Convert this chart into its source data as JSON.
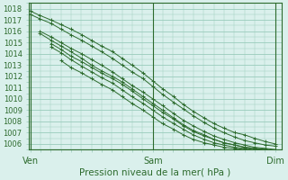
{
  "xlabel": "Pression niveau de la mer( hPa )",
  "xtick_labels": [
    "Ven",
    "Sam",
    "Dim"
  ],
  "xtick_positions": [
    0.0,
    1.0,
    2.0
  ],
  "ylim": [
    1005.5,
    1018.5
  ],
  "yticks": [
    1006,
    1007,
    1008,
    1009,
    1010,
    1011,
    1012,
    1013,
    1014,
    1015,
    1016,
    1017,
    1018
  ],
  "xlim": [
    -0.01,
    2.05
  ],
  "bg_color": "#daf0ec",
  "grid_color": "#99ccbb",
  "line_color": "#2d6b2d",
  "lines": [
    {
      "x": [
        0.0,
        0.08,
        0.17,
        0.25,
        0.33,
        0.42,
        0.5,
        0.58,
        0.67,
        0.75,
        0.83,
        0.92,
        1.0,
        1.08,
        1.17,
        1.25,
        1.33,
        1.42,
        1.5,
        1.58,
        1.67,
        1.75,
        1.83,
        1.92,
        2.0
      ],
      "y": [
        1017.8,
        1017.4,
        1017.0,
        1016.6,
        1016.2,
        1015.7,
        1015.2,
        1014.7,
        1014.2,
        1013.6,
        1013.0,
        1012.3,
        1011.6,
        1010.9,
        1010.2,
        1009.5,
        1008.9,
        1008.3,
        1007.8,
        1007.4,
        1007.0,
        1006.8,
        1006.5,
        1006.2,
        1006.0
      ]
    },
    {
      "x": [
        0.0,
        0.08,
        0.17,
        0.25,
        0.33,
        0.42,
        0.5,
        0.58,
        0.67,
        0.75,
        0.83,
        0.92,
        1.0,
        1.08,
        1.17,
        1.25,
        1.33,
        1.42,
        1.5,
        1.58,
        1.67,
        1.75,
        1.83,
        1.92,
        2.0
      ],
      "y": [
        1017.5,
        1017.1,
        1016.7,
        1016.2,
        1015.7,
        1015.2,
        1014.7,
        1014.2,
        1013.6,
        1013.0,
        1012.4,
        1011.8,
        1011.1,
        1010.4,
        1009.7,
        1009.1,
        1008.5,
        1007.9,
        1007.4,
        1007.0,
        1006.6,
        1006.3,
        1006.1,
        1005.9,
        1005.8
      ]
    },
    {
      "x": [
        0.08,
        0.17,
        0.25,
        0.33,
        0.42,
        0.5,
        0.58,
        0.67,
        0.75,
        0.83,
        0.92,
        1.0,
        1.08,
        1.17,
        1.25,
        1.33,
        1.42,
        1.5,
        1.58,
        1.67,
        1.75,
        1.83,
        1.92,
        2.0
      ],
      "y": [
        1016.0,
        1015.5,
        1015.0,
        1014.5,
        1014.0,
        1013.5,
        1013.0,
        1012.4,
        1011.8,
        1011.2,
        1010.6,
        1010.0,
        1009.4,
        1008.7,
        1008.1,
        1007.6,
        1007.1,
        1006.7,
        1006.4,
        1006.1,
        1005.9,
        1005.7,
        1005.6,
        1005.5
      ]
    },
    {
      "x": [
        0.08,
        0.17,
        0.25,
        0.33,
        0.42,
        0.5,
        0.58,
        0.67,
        0.75,
        0.83,
        0.92,
        1.0,
        1.08,
        1.17,
        1.25,
        1.33,
        1.42,
        1.5,
        1.58,
        1.67,
        1.75,
        1.83,
        1.92,
        2.0
      ],
      "y": [
        1015.8,
        1015.2,
        1014.7,
        1014.2,
        1013.6,
        1013.0,
        1012.5,
        1012.0,
        1011.5,
        1010.9,
        1010.2,
        1009.6,
        1009.0,
        1008.3,
        1007.7,
        1007.2,
        1006.8,
        1006.4,
        1006.1,
        1005.9,
        1005.7,
        1005.6,
        1005.5,
        1005.4
      ]
    },
    {
      "x": [
        0.17,
        0.25,
        0.33,
        0.42,
        0.5,
        0.58,
        0.67,
        0.75,
        0.83,
        0.92,
        1.0,
        1.08,
        1.17,
        1.25,
        1.33,
        1.42,
        1.5,
        1.58,
        1.67,
        1.75,
        1.83,
        1.92,
        2.0
      ],
      "y": [
        1014.9,
        1014.4,
        1013.8,
        1013.3,
        1012.8,
        1012.3,
        1011.8,
        1011.3,
        1010.7,
        1010.0,
        1009.4,
        1008.8,
        1008.2,
        1007.6,
        1007.1,
        1006.7,
        1006.4,
        1006.1,
        1005.9,
        1005.7,
        1005.6,
        1005.5,
        1005.4
      ]
    },
    {
      "x": [
        0.17,
        0.25,
        0.33,
        0.42,
        0.5,
        0.58,
        0.67,
        0.75,
        0.83,
        0.92,
        1.0,
        1.08,
        1.17,
        1.25,
        1.33,
        1.42,
        1.5,
        1.58,
        1.67,
        1.75,
        1.83,
        1.92,
        2.0
      ],
      "y": [
        1014.6,
        1014.1,
        1013.5,
        1012.9,
        1012.4,
        1011.9,
        1011.4,
        1010.8,
        1010.2,
        1009.6,
        1009.0,
        1008.4,
        1007.8,
        1007.3,
        1006.8,
        1006.4,
        1006.1,
        1005.9,
        1005.7,
        1005.6,
        1005.5,
        1005.45,
        1005.4
      ]
    },
    {
      "x": [
        0.25,
        0.33,
        0.42,
        0.5,
        0.58,
        0.67,
        0.75,
        0.83,
        0.92,
        1.0,
        1.08,
        1.17,
        1.25,
        1.33,
        1.42,
        1.5,
        1.58,
        1.67,
        1.75,
        1.83,
        1.92,
        2.0
      ],
      "y": [
        1013.4,
        1012.8,
        1012.3,
        1011.8,
        1011.3,
        1010.8,
        1010.2,
        1009.6,
        1009.0,
        1008.4,
        1007.8,
        1007.3,
        1006.8,
        1006.4,
        1006.1,
        1005.9,
        1005.7,
        1005.6,
        1005.5,
        1005.45,
        1005.4,
        1005.35
      ]
    }
  ]
}
